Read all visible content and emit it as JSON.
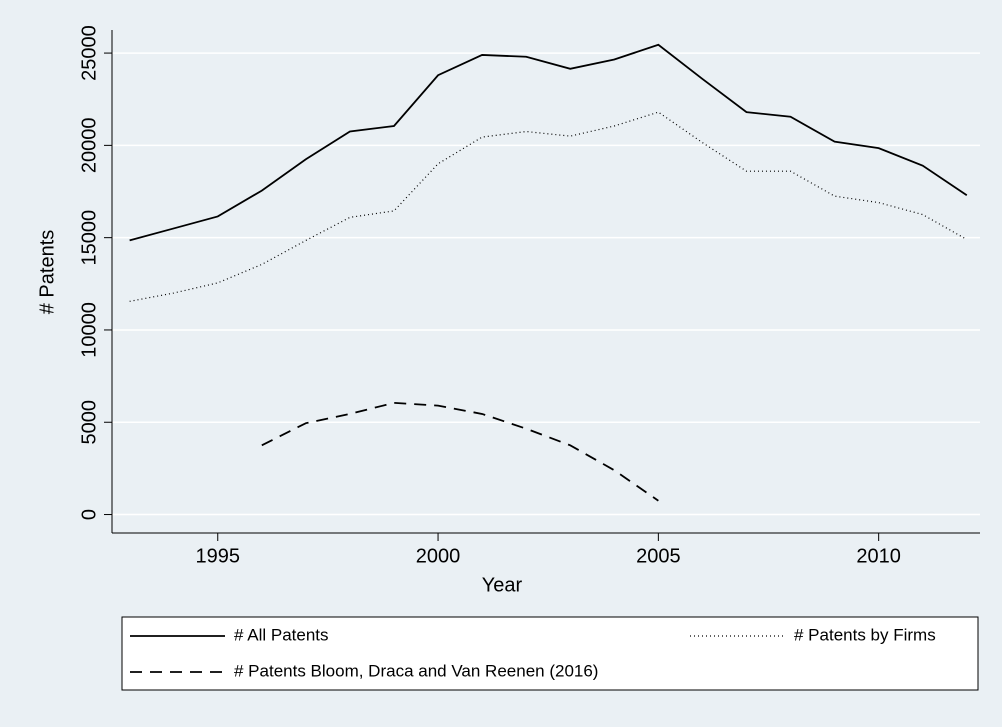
{
  "chart_data": {
    "type": "line",
    "x_label": "Year",
    "y_label": "# Patents",
    "x": [
      1993,
      1994,
      1995,
      1996,
      1997,
      1998,
      1999,
      2000,
      2001,
      2002,
      2003,
      2004,
      2005,
      2006,
      2007,
      2008,
      2009,
      2010,
      2011,
      2012
    ],
    "series": [
      {
        "name": "# All Patents",
        "color": "#000000",
        "dash": "solid",
        "values": [
          14850,
          15500,
          16150,
          17550,
          19250,
          20750,
          21050,
          23800,
          24900,
          24800,
          24150,
          24650,
          25450,
          23600,
          21800,
          21550,
          20200,
          19850,
          18900,
          17300
        ]
      },
      {
        "name": "# Patents by Firms",
        "color": "#000000",
        "dash": "dotted",
        "values": [
          11550,
          12000,
          12550,
          13550,
          14850,
          16100,
          16450,
          19000,
          20450,
          20750,
          20500,
          21050,
          21800,
          20150,
          18600,
          18600,
          17250,
          16900,
          16250,
          14900
        ]
      },
      {
        "name": "# Patents Bloom, Draca and Van Reenen (2016)",
        "color": "#000000",
        "dash": "dashed",
        "values": [
          null,
          null,
          null,
          3750,
          4950,
          5450,
          6050,
          5900,
          5450,
          4650,
          3750,
          2400,
          750,
          null,
          null,
          null,
          null,
          null,
          null,
          null
        ]
      }
    ],
    "xlim": [
      1992.6,
      2012.3
    ],
    "xticks": [
      1995,
      2000,
      2005,
      2010
    ],
    "ylim": [
      -1000,
      26250
    ],
    "yticks": [
      0,
      5000,
      10000,
      15000,
      20000,
      25000
    ],
    "grid": true,
    "legend": "bottom"
  }
}
